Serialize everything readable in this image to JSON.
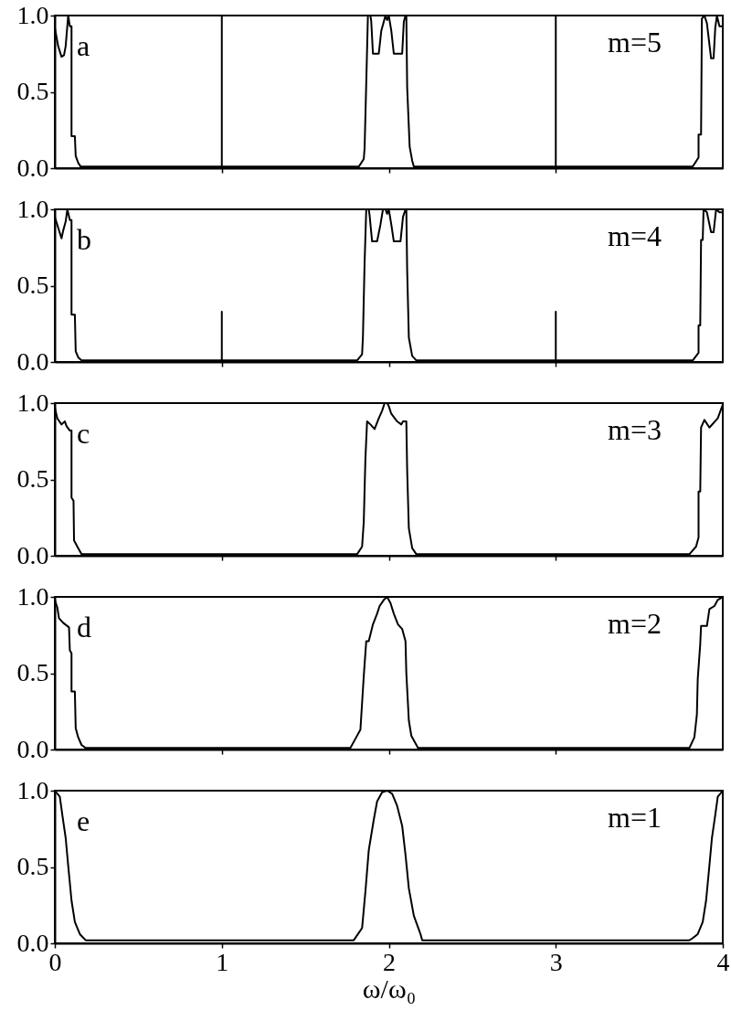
{
  "chart_data": [
    {
      "type": "line",
      "color": "#000000",
      "annotations": [
        "a",
        "m=5"
      ],
      "xlim": [
        0,
        4
      ],
      "xticks": [
        0,
        1,
        2,
        3,
        4
      ],
      "ylim": [
        0,
        1
      ],
      "yticks": [
        {
          "value": 0,
          "label": "0.0"
        },
        {
          "value": 0.5,
          "label": "0.5"
        },
        {
          "value": 1,
          "label": "1.0"
        }
      ],
      "tick_labels": "y",
      "x": [
        0,
        0.02,
        0.04,
        0.055,
        0.065,
        0.08,
        0.09,
        0.1,
        0.1,
        0.12,
        0.125,
        0.14,
        0.155,
        1,
        1,
        1,
        1.82,
        1.85,
        1.855,
        1.865,
        1.875,
        1.89,
        1.895,
        1.905,
        1.94,
        1.955,
        1.97,
        1.98,
        1.99,
        2.0,
        2.015,
        2.03,
        2.08,
        2.09,
        2.1,
        2.105,
        2.11,
        2.125,
        2.14,
        2.15,
        3,
        3,
        3,
        3.82,
        3.855,
        3.855,
        3.87,
        3.875,
        3.89,
        3.905,
        3.93,
        3.945,
        3.955,
        3.965,
        3.98,
        4.0
      ],
      "values": [
        0.92,
        0.8,
        0.73,
        0.74,
        0.8,
        1.0,
        0.93,
        0.93,
        0.21,
        0.21,
        0.08,
        0.035,
        0.01,
        0.01,
        1.0,
        0.01,
        0.01,
        0.06,
        0.13,
        0.56,
        1.0,
        1.0,
        0.96,
        0.75,
        0.75,
        0.9,
        0.96,
        1.0,
        0.97,
        1.0,
        0.9,
        0.75,
        0.75,
        0.96,
        1.0,
        1.0,
        0.53,
        0.14,
        0.05,
        0.01,
        0.01,
        1.0,
        0.01,
        0.01,
        0.07,
        0.22,
        0.22,
        0.98,
        1.0,
        0.95,
        0.72,
        0.72,
        0.92,
        1.0,
        0.93,
        0.93
      ]
    },
    {
      "type": "line",
      "color": "#000000",
      "annotations": [
        "b",
        "m=4"
      ],
      "xlim": [
        0,
        4
      ],
      "xticks": [
        0,
        1,
        2,
        3,
        4
      ],
      "ylim": [
        0,
        1
      ],
      "yticks": [
        {
          "value": 0,
          "label": "0.0"
        },
        {
          "value": 0.5,
          "label": "0.5"
        },
        {
          "value": 1,
          "label": "1.0"
        }
      ],
      "tick_labels": "y",
      "x": [
        0,
        0.02,
        0.04,
        0.05,
        0.065,
        0.075,
        0.09,
        0.1,
        0.1,
        0.12,
        0.125,
        0.14,
        0.16,
        1,
        1,
        1,
        1.81,
        1.84,
        1.845,
        1.855,
        1.865,
        1.88,
        1.885,
        1.9,
        1.93,
        1.95,
        1.965,
        1.98,
        1.99,
        2.0,
        2.015,
        2.03,
        2.07,
        2.085,
        2.1,
        2.105,
        2.11,
        2.12,
        2.14,
        2.165,
        3,
        3,
        3,
        3.82,
        3.855,
        3.855,
        3.865,
        3.87,
        3.88,
        3.885,
        3.905,
        3.93,
        3.945,
        3.96,
        3.98,
        4.0
      ],
      "values": [
        0.95,
        0.88,
        0.81,
        0.86,
        0.92,
        1.0,
        0.93,
        0.93,
        0.31,
        0.31,
        0.07,
        0.03,
        0.01,
        0.01,
        0.33,
        0.01,
        0.01,
        0.05,
        0.16,
        0.65,
        1.0,
        1.0,
        0.96,
        0.79,
        0.79,
        0.9,
        1.0,
        1.0,
        0.97,
        1.0,
        0.9,
        0.79,
        0.79,
        0.95,
        1.0,
        1.0,
        0.6,
        0.16,
        0.04,
        0.01,
        0.01,
        0.33,
        0.01,
        0.01,
        0.06,
        0.24,
        0.24,
        0.8,
        0.8,
        1.0,
        0.98,
        0.85,
        0.85,
        1.0,
        0.98,
        0.98
      ]
    },
    {
      "type": "line",
      "color": "#000000",
      "annotations": [
        "c",
        "m=3"
      ],
      "xlim": [
        0,
        4
      ],
      "xticks": [
        0,
        1,
        2,
        3,
        4
      ],
      "ylim": [
        0,
        1
      ],
      "yticks": [
        {
          "value": 0,
          "label": "0.0"
        },
        {
          "value": 0.5,
          "label": "0.5"
        },
        {
          "value": 1,
          "label": "1.0"
        }
      ],
      "tick_labels": "y",
      "x": [
        0,
        0.015,
        0.04,
        0.06,
        0.07,
        0.09,
        0.1,
        0.1,
        0.112,
        0.115,
        0.14,
        0.16,
        1.81,
        1.84,
        1.85,
        1.86,
        1.87,
        1.89,
        1.915,
        1.94,
        1.96,
        1.975,
        1.99,
        2.0,
        2.015,
        2.05,
        2.075,
        2.085,
        2.105,
        2.11,
        2.12,
        2.14,
        2.165,
        3.8,
        3.84,
        3.855,
        3.855,
        3.865,
        3.87,
        3.89,
        3.92,
        3.97,
        3.98,
        4.0
      ],
      "values": [
        0.97,
        0.9,
        0.86,
        0.88,
        0.85,
        0.82,
        0.82,
        0.38,
        0.36,
        0.1,
        0.05,
        0.01,
        0.01,
        0.06,
        0.22,
        0.64,
        0.88,
        0.86,
        0.83,
        0.9,
        0.95,
        1.0,
        1.0,
        0.98,
        0.93,
        0.88,
        0.86,
        0.88,
        0.88,
        0.56,
        0.18,
        0.05,
        0.01,
        0.01,
        0.06,
        0.12,
        0.42,
        0.42,
        0.84,
        0.89,
        0.84,
        0.9,
        0.93,
        0.99
      ]
    },
    {
      "type": "line",
      "color": "#000000",
      "annotations": [
        "d",
        "m=2"
      ],
      "xlim": [
        0,
        4
      ],
      "xticks": [
        0,
        1,
        2,
        3,
        4
      ],
      "ylim": [
        0,
        1
      ],
      "yticks": [
        {
          "value": 0,
          "label": "0.0"
        },
        {
          "value": 0.5,
          "label": "0.5"
        },
        {
          "value": 1,
          "label": "1.0"
        }
      ],
      "tick_labels": "y",
      "x": [
        0,
        0.015,
        0.025,
        0.05,
        0.085,
        0.09,
        0.1,
        0.1,
        0.12,
        0.125,
        0.14,
        0.16,
        0.185,
        1.77,
        1.805,
        1.83,
        1.85,
        1.865,
        1.88,
        1.905,
        1.93,
        1.945,
        1.97,
        1.99,
        2.01,
        2.03,
        2.055,
        2.08,
        2.1,
        2.105,
        2.12,
        2.135,
        2.175,
        3.8,
        3.83,
        3.845,
        3.85,
        3.865,
        3.87,
        3.905,
        3.92,
        3.95,
        3.97,
        4.0
      ],
      "values": [
        0.98,
        0.93,
        0.86,
        0.83,
        0.8,
        0.65,
        0.63,
        0.38,
        0.38,
        0.14,
        0.08,
        0.03,
        0.01,
        0.01,
        0.08,
        0.13,
        0.48,
        0.71,
        0.71,
        0.82,
        0.89,
        0.94,
        0.98,
        1.0,
        0.96,
        0.89,
        0.82,
        0.79,
        0.71,
        0.5,
        0.19,
        0.09,
        0.01,
        0.01,
        0.08,
        0.23,
        0.46,
        0.69,
        0.81,
        0.81,
        0.92,
        0.94,
        0.98,
        1.0
      ]
    },
    {
      "type": "line",
      "color": "#000000",
      "annotations": [
        "e",
        "m=1"
      ],
      "xlabel": "ω/ω₀",
      "xlim": [
        0,
        4
      ],
      "xticks": [
        0,
        1,
        2,
        3,
        4
      ],
      "ylim": [
        0,
        1
      ],
      "yticks": [
        {
          "value": 0,
          "label": "0.0"
        },
        {
          "value": 0.5,
          "label": "0.5"
        },
        {
          "value": 1,
          "label": "1.0"
        }
      ],
      "x": [
        0,
        0.03,
        0.045,
        0.065,
        0.08,
        0.1,
        0.12,
        0.15,
        0.185,
        1.79,
        1.84,
        1.86,
        1.88,
        1.91,
        1.93,
        1.96,
        1.99,
        2.02,
        2.05,
        2.08,
        2.1,
        2.12,
        2.15,
        2.19,
        2.2,
        3.8,
        3.815,
        3.85,
        3.88,
        3.9,
        3.92,
        3.935,
        3.955,
        3.97,
        4.0
      ],
      "values": [
        1.0,
        0.96,
        0.84,
        0.69,
        0.51,
        0.28,
        0.14,
        0.06,
        0.02,
        0.02,
        0.1,
        0.34,
        0.61,
        0.81,
        0.93,
        0.99,
        1.0,
        0.98,
        0.9,
        0.77,
        0.58,
        0.36,
        0.18,
        0.06,
        0.02,
        0.02,
        0.03,
        0.06,
        0.14,
        0.28,
        0.51,
        0.69,
        0.84,
        0.96,
        1.0
      ]
    }
  ]
}
